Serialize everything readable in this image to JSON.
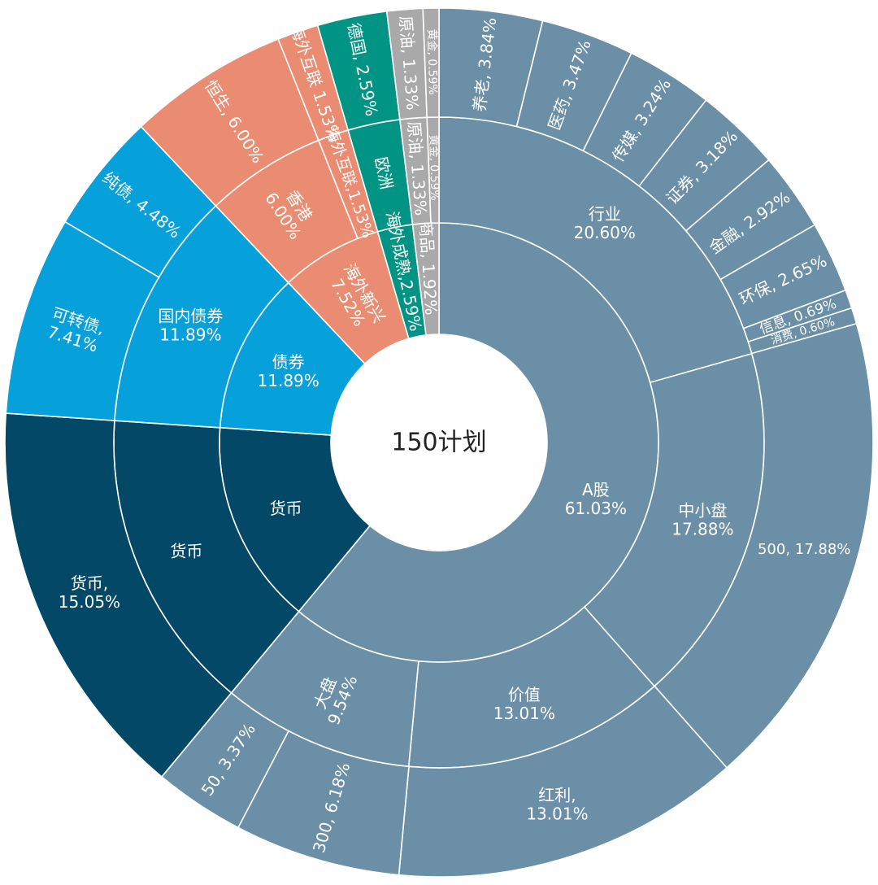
{
  "chart_data": {
    "type": "sunburst",
    "center_label": "150计划",
    "colors": {
      "a_share": "#6a8fa6",
      "money": "#034866",
      "bond": "#06a1db",
      "hk": "#ea8c72",
      "europe": "#019484",
      "commodity": "#a9a9a9",
      "center_bg": "#ffffff",
      "line": "#ffffff"
    },
    "rings": [
      {
        "ring": "inner",
        "segments": [
          {
            "name": "A股",
            "value": 61.03,
            "label": "A股\n61.03%",
            "color_key": "a_share"
          },
          {
            "name": "货币",
            "value": 15.05,
            "label": "货币",
            "color_key": "money"
          },
          {
            "name": "债券",
            "value": 11.89,
            "label": "债券\n11.89%",
            "color_key": "bond"
          },
          {
            "name": "海外新兴",
            "value": 7.52,
            "label": "海外新兴\n7.52%",
            "color_key": "hk"
          },
          {
            "name": "海外成熟",
            "value": 2.59,
            "label": "海外成熟,2.59%",
            "color_key": "europe"
          },
          {
            "name": "商品",
            "value": 1.92,
            "label": "商品, 1.92%",
            "color_key": "commodity"
          }
        ]
      },
      {
        "ring": "middle",
        "segments": [
          {
            "name": "行业",
            "value": 20.6,
            "label": "行业\n20.60%",
            "color_key": "a_share"
          },
          {
            "name": "中小盘",
            "value": 17.88,
            "label": "中小盘\n17.88%",
            "color_key": "a_share"
          },
          {
            "name": "价值",
            "value": 13.01,
            "label": "价值\n13.01%",
            "color_key": "a_share"
          },
          {
            "name": "大盘",
            "value": 9.54,
            "label": "大盘\n9.54%",
            "color_key": "a_share"
          },
          {
            "name": "货币",
            "value": 15.05,
            "label": "货币",
            "color_key": "money"
          },
          {
            "name": "国内债券",
            "value": 11.89,
            "label": "国内债券\n11.89%",
            "color_key": "bond"
          },
          {
            "name": "香港",
            "value": 6.0,
            "label": "香港\n6.00%",
            "color_key": "hk"
          },
          {
            "name": "海外互联",
            "value": 1.53,
            "label": "海外互联,1.53%",
            "color_key": "hk"
          },
          {
            "name": "欧洲",
            "value": 2.59,
            "label": "欧洲",
            "color_key": "europe"
          },
          {
            "name": "原油",
            "value": 1.33,
            "label": "原油, 1.33%",
            "color_key": "commodity"
          },
          {
            "name": "黄金",
            "value": 0.59,
            "label": "黄金, 0.59%",
            "color_key": "commodity"
          }
        ]
      },
      {
        "ring": "outer",
        "segments": [
          {
            "name": "养老",
            "value": 3.84,
            "label": "养老, 3.84%",
            "color_key": "a_share"
          },
          {
            "name": "医药",
            "value": 3.47,
            "label": "医药, 3.47%",
            "color_key": "a_share"
          },
          {
            "name": "传媒",
            "value": 3.24,
            "label": "传媒, 3.24%",
            "color_key": "a_share"
          },
          {
            "name": "证券",
            "value": 3.18,
            "label": "证券, 3.18%",
            "color_key": "a_share"
          },
          {
            "name": "金融",
            "value": 2.92,
            "label": "金融, 2.92%",
            "color_key": "a_share"
          },
          {
            "name": "环保",
            "value": 2.65,
            "label": "环保, 2.65%",
            "color_key": "a_share"
          },
          {
            "name": "信息",
            "value": 0.69,
            "label": "信息, 0.69%",
            "color_key": "a_share"
          },
          {
            "name": "消费",
            "value": 0.6,
            "label": "消费, 0.60%",
            "color_key": "a_share"
          },
          {
            "name": "500",
            "value": 17.88,
            "label": "500, 17.88%",
            "color_key": "a_share"
          },
          {
            "name": "红利",
            "value": 13.01,
            "label": "红利,\n13.01%",
            "color_key": "a_share"
          },
          {
            "name": "300",
            "value": 6.18,
            "label": "300, 6.18%",
            "color_key": "a_share"
          },
          {
            "name": "50",
            "value": 3.37,
            "label": "50, 3.37%",
            "color_key": "a_share"
          },
          {
            "name": "货币",
            "value": 15.05,
            "label": "货币,\n15.05%",
            "color_key": "money"
          },
          {
            "name": "可转债",
            "value": 7.41,
            "label": "可转债,\n7.41%",
            "color_key": "bond"
          },
          {
            "name": "纯债",
            "value": 4.48,
            "label": "纯债, 4.48%",
            "color_key": "bond"
          },
          {
            "name": "恒生",
            "value": 6.0,
            "label": "恒生, 6.00%",
            "color_key": "hk"
          },
          {
            "name": "海外互联",
            "value": 1.53,
            "label": "海外互联 1.53%",
            "color_key": "hk"
          },
          {
            "name": "德国",
            "value": 2.59,
            "label": "德国, 2.59%",
            "color_key": "europe"
          },
          {
            "name": "原油",
            "value": 1.33,
            "label": "原油, 1.33%",
            "color_key": "commodity"
          },
          {
            "name": "黄金",
            "value": 0.59,
            "label": "黄金, 0.59%",
            "color_key": "commodity"
          }
        ]
      }
    ]
  }
}
